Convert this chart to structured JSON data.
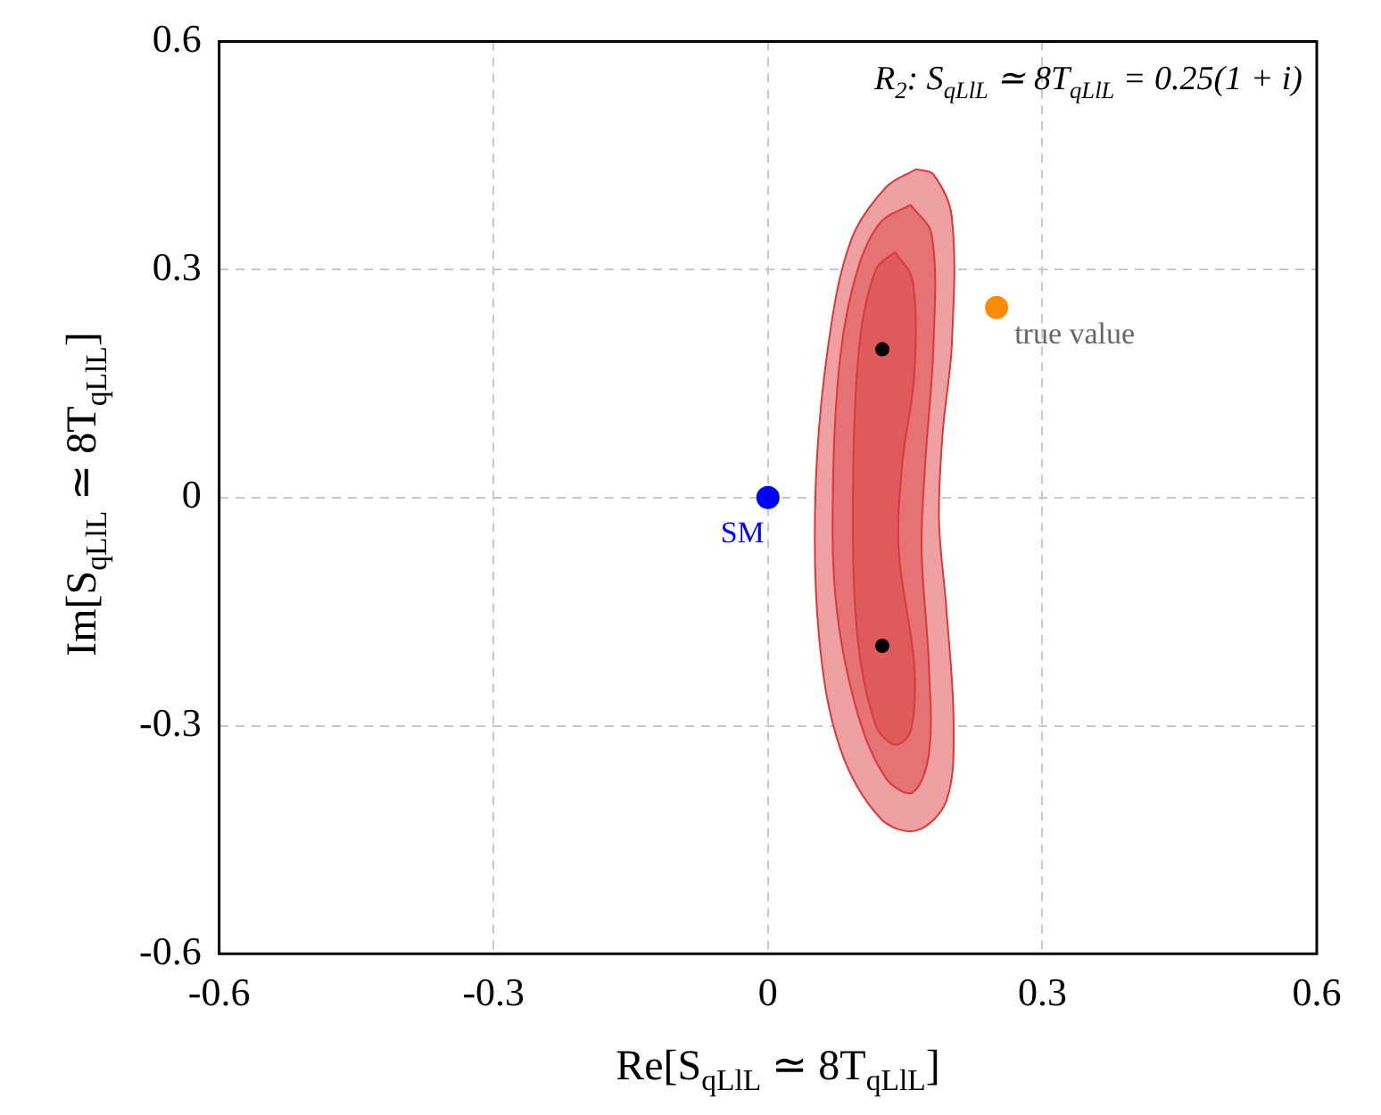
{
  "chart_data": {
    "type": "scatter",
    "xlabel": "Re[S$_{qLlL}$ ≃ 8T$_{qLlL}$]",
    "ylabel": "Im[S$_{qLlL}$ ≃ 8T$_{qLlL}$]",
    "annotations": [
      "R$_{2}$: S$_{qLlL}$ ≃ 8T$_{qLlL}$ = 0.25(1 + i)"
    ],
    "xlim": [
      -0.6,
      0.6
    ],
    "ylim": [
      -0.6,
      0.6
    ],
    "xticks": [
      -0.6,
      -0.3,
      0,
      0.3,
      0.6
    ],
    "yticks": [
      -0.6,
      -0.3,
      0,
      0.3,
      0.6
    ],
    "grid": true,
    "legend": false,
    "series": [
      {
        "type": "area",
        "color": "#eea0a2",
        "x": [
          0.162,
          0.181,
          0.201,
          0.201,
          0.191,
          0.187,
          0.195,
          0.203,
          0.195,
          0.162,
          0.123,
          0.079,
          0.056,
          0.052,
          0.066,
          0.091,
          0.129,
          0.162
        ],
        "values": [
          0.432,
          0.425,
          0.369,
          0.201,
          0.085,
          -0.03,
          -0.145,
          -0.3,
          -0.399,
          -0.438,
          -0.422,
          -0.33,
          -0.185,
          0.009,
          0.201,
          0.339,
          0.408,
          0.432
        ]
      },
      {
        "type": "area",
        "color": "#e57373",
        "x": [
          0.156,
          0.179,
          0.181,
          0.172,
          0.168,
          0.176,
          0.176,
          0.158,
          0.129,
          0.098,
          0.075,
          0.071,
          0.079,
          0.098,
          0.123,
          0.156
        ],
        "values": [
          0.385,
          0.346,
          0.201,
          0.046,
          -0.069,
          -0.222,
          -0.337,
          -0.388,
          -0.369,
          -0.284,
          -0.145,
          0.009,
          0.185,
          0.3,
          0.362,
          0.385
        ]
      },
      {
        "type": "area",
        "color": "#df5a5a",
        "x": [
          0.139,
          0.158,
          0.16,
          0.147,
          0.143,
          0.16,
          0.156,
          0.139,
          0.118,
          0.098,
          0.093,
          0.1,
          0.118,
          0.139
        ],
        "values": [
          0.323,
          0.286,
          0.162,
          0.046,
          -0.069,
          -0.222,
          -0.307,
          -0.325,
          -0.3,
          -0.185,
          0.009,
          0.201,
          0.3,
          0.323
        ]
      },
      {
        "color": "#000000",
        "x": [
          0.125,
          0.125
        ],
        "values": [
          0.195,
          -0.195
        ]
      },
      {
        "name": "SM",
        "color": "#0000ff",
        "x": [
          0
        ],
        "values": [
          0
        ]
      },
      {
        "name": "true value",
        "color": "#ff8c00",
        "x": [
          0.25
        ],
        "values": [
          0.25
        ]
      }
    ]
  }
}
